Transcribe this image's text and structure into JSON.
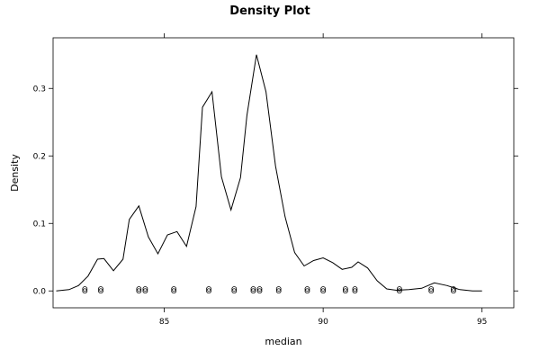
{
  "chart_data": {
    "type": "line",
    "title": "Density Plot",
    "xlabel": "median",
    "ylabel": "Density",
    "xlim": [
      81.5,
      96.0
    ],
    "ylim": [
      -0.025,
      0.375
    ],
    "x_ticks": [
      85,
      90,
      95
    ],
    "x_tick_labels": [
      "85",
      "90",
      "95"
    ],
    "y_ticks": [
      0.0,
      0.1,
      0.2,
      0.3
    ],
    "y_tick_labels": [
      "0.0",
      "0.1",
      "0.2",
      "0.3"
    ],
    "grid": false,
    "series": [
      {
        "points": [
          [
            81.6,
            0.0
          ],
          [
            82.0,
            0.002
          ],
          [
            82.3,
            0.008
          ],
          [
            82.6,
            0.022
          ],
          [
            82.9,
            0.047
          ],
          [
            83.1,
            0.048
          ],
          [
            83.4,
            0.03
          ],
          [
            83.7,
            0.047
          ],
          [
            83.9,
            0.106
          ],
          [
            84.2,
            0.126
          ],
          [
            84.5,
            0.08
          ],
          [
            84.8,
            0.055
          ],
          [
            85.1,
            0.083
          ],
          [
            85.4,
            0.088
          ],
          [
            85.7,
            0.066
          ],
          [
            86.0,
            0.125
          ],
          [
            86.2,
            0.272
          ],
          [
            86.5,
            0.295
          ],
          [
            86.8,
            0.169
          ],
          [
            87.1,
            0.12
          ],
          [
            87.4,
            0.168
          ],
          [
            87.6,
            0.26
          ],
          [
            87.9,
            0.35
          ],
          [
            88.2,
            0.295
          ],
          [
            88.5,
            0.185
          ],
          [
            88.8,
            0.11
          ],
          [
            89.1,
            0.057
          ],
          [
            89.4,
            0.037
          ],
          [
            89.7,
            0.045
          ],
          [
            90.0,
            0.049
          ],
          [
            90.3,
            0.042
          ],
          [
            90.6,
            0.032
          ],
          [
            90.9,
            0.035
          ],
          [
            91.1,
            0.043
          ],
          [
            91.4,
            0.034
          ],
          [
            91.7,
            0.015
          ],
          [
            92.0,
            0.003
          ],
          [
            92.3,
            0.001
          ],
          [
            92.7,
            0.002
          ],
          [
            93.1,
            0.004
          ],
          [
            93.5,
            0.012
          ],
          [
            93.9,
            0.008
          ],
          [
            94.3,
            0.002
          ],
          [
            94.7,
            0.0
          ],
          [
            95.0,
            0.0
          ]
        ]
      }
    ],
    "rug_points": [
      [
        82.5,
        0.0
      ],
      [
        82.5,
        0.003
      ],
      [
        83.0,
        0.0
      ],
      [
        83.0,
        0.003
      ],
      [
        84.2,
        0.0
      ],
      [
        84.2,
        0.003
      ],
      [
        84.4,
        0.0
      ],
      [
        84.4,
        0.003
      ],
      [
        85.3,
        0.0
      ],
      [
        85.3,
        0.003
      ],
      [
        86.4,
        0.0
      ],
      [
        86.4,
        0.003
      ],
      [
        87.2,
        0.0
      ],
      [
        87.2,
        0.003
      ],
      [
        87.8,
        0.0
      ],
      [
        87.8,
        0.003
      ],
      [
        88.0,
        0.0
      ],
      [
        88.0,
        0.003
      ],
      [
        88.6,
        0.0
      ],
      [
        88.6,
        0.003
      ],
      [
        89.5,
        0.0
      ],
      [
        89.5,
        0.003
      ],
      [
        90.0,
        0.0
      ],
      [
        90.0,
        0.003
      ],
      [
        90.7,
        0.0
      ],
      [
        90.7,
        0.003
      ],
      [
        91.0,
        0.0
      ],
      [
        91.0,
        0.003
      ],
      [
        92.4,
        0.0
      ],
      [
        92.4,
        0.003
      ],
      [
        93.4,
        0.0
      ],
      [
        93.4,
        0.003
      ],
      [
        94.1,
        0.0
      ],
      [
        94.1,
        0.003
      ]
    ]
  }
}
